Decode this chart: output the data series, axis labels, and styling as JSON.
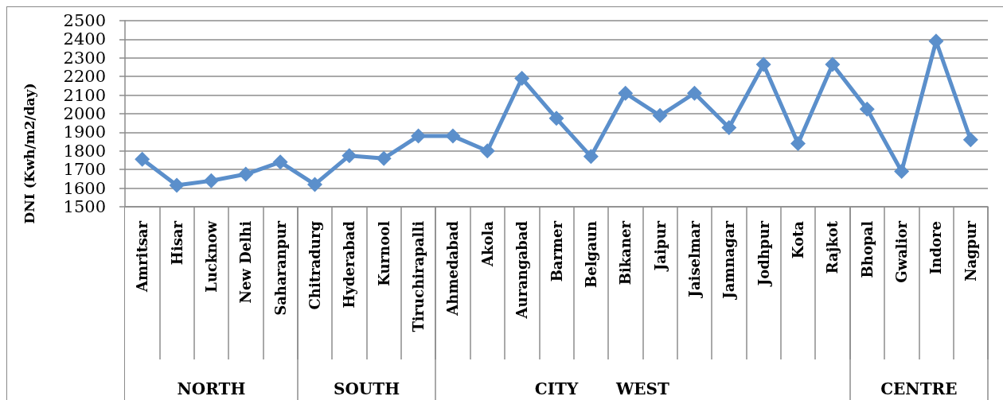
{
  "chart_data": {
    "type": "line",
    "xlabel": "CITY",
    "ylabel": "DNI (Kwh/m2/day)",
    "categories": [
      "Amritsar",
      "Hisar",
      "Lucknow",
      "New Delhi",
      "Saharanpur",
      "Chitradurg",
      "Hyderabad",
      "Kurnool",
      "Tiruchirapalli",
      "Ahmedabad",
      "Akola",
      "Aurangabad",
      "Barmer",
      "Belgaun",
      "Bikaner",
      "Jaipur",
      "Jaiselmar",
      "Jamnagar",
      "Jodhpur",
      "Kota",
      "Rajkot",
      "Bhopal",
      "Gwalior",
      "Indore",
      "Nagpur"
    ],
    "series": [
      {
        "color": "#5b8fcb",
        "values": [
          1755,
          1615,
          1640,
          1675,
          1740,
          1620,
          1775,
          1760,
          1880,
          1880,
          1800,
          2190,
          1975,
          1770,
          2110,
          1990,
          2110,
          1925,
          2265,
          1840,
          2265,
          2025,
          1690,
          2390,
          1860
        ]
      }
    ],
    "ylim": [
      1500,
      2500
    ],
    "yticks": [
      1500,
      1600,
      1700,
      1800,
      1900,
      2000,
      2100,
      2200,
      2300,
      2400,
      2500
    ],
    "grid": "y",
    "marker": "diamond",
    "line_style": "solid",
    "annotations": [
      "NORTH",
      "SOUTH",
      "WEST",
      "CENTRE"
    ]
  }
}
